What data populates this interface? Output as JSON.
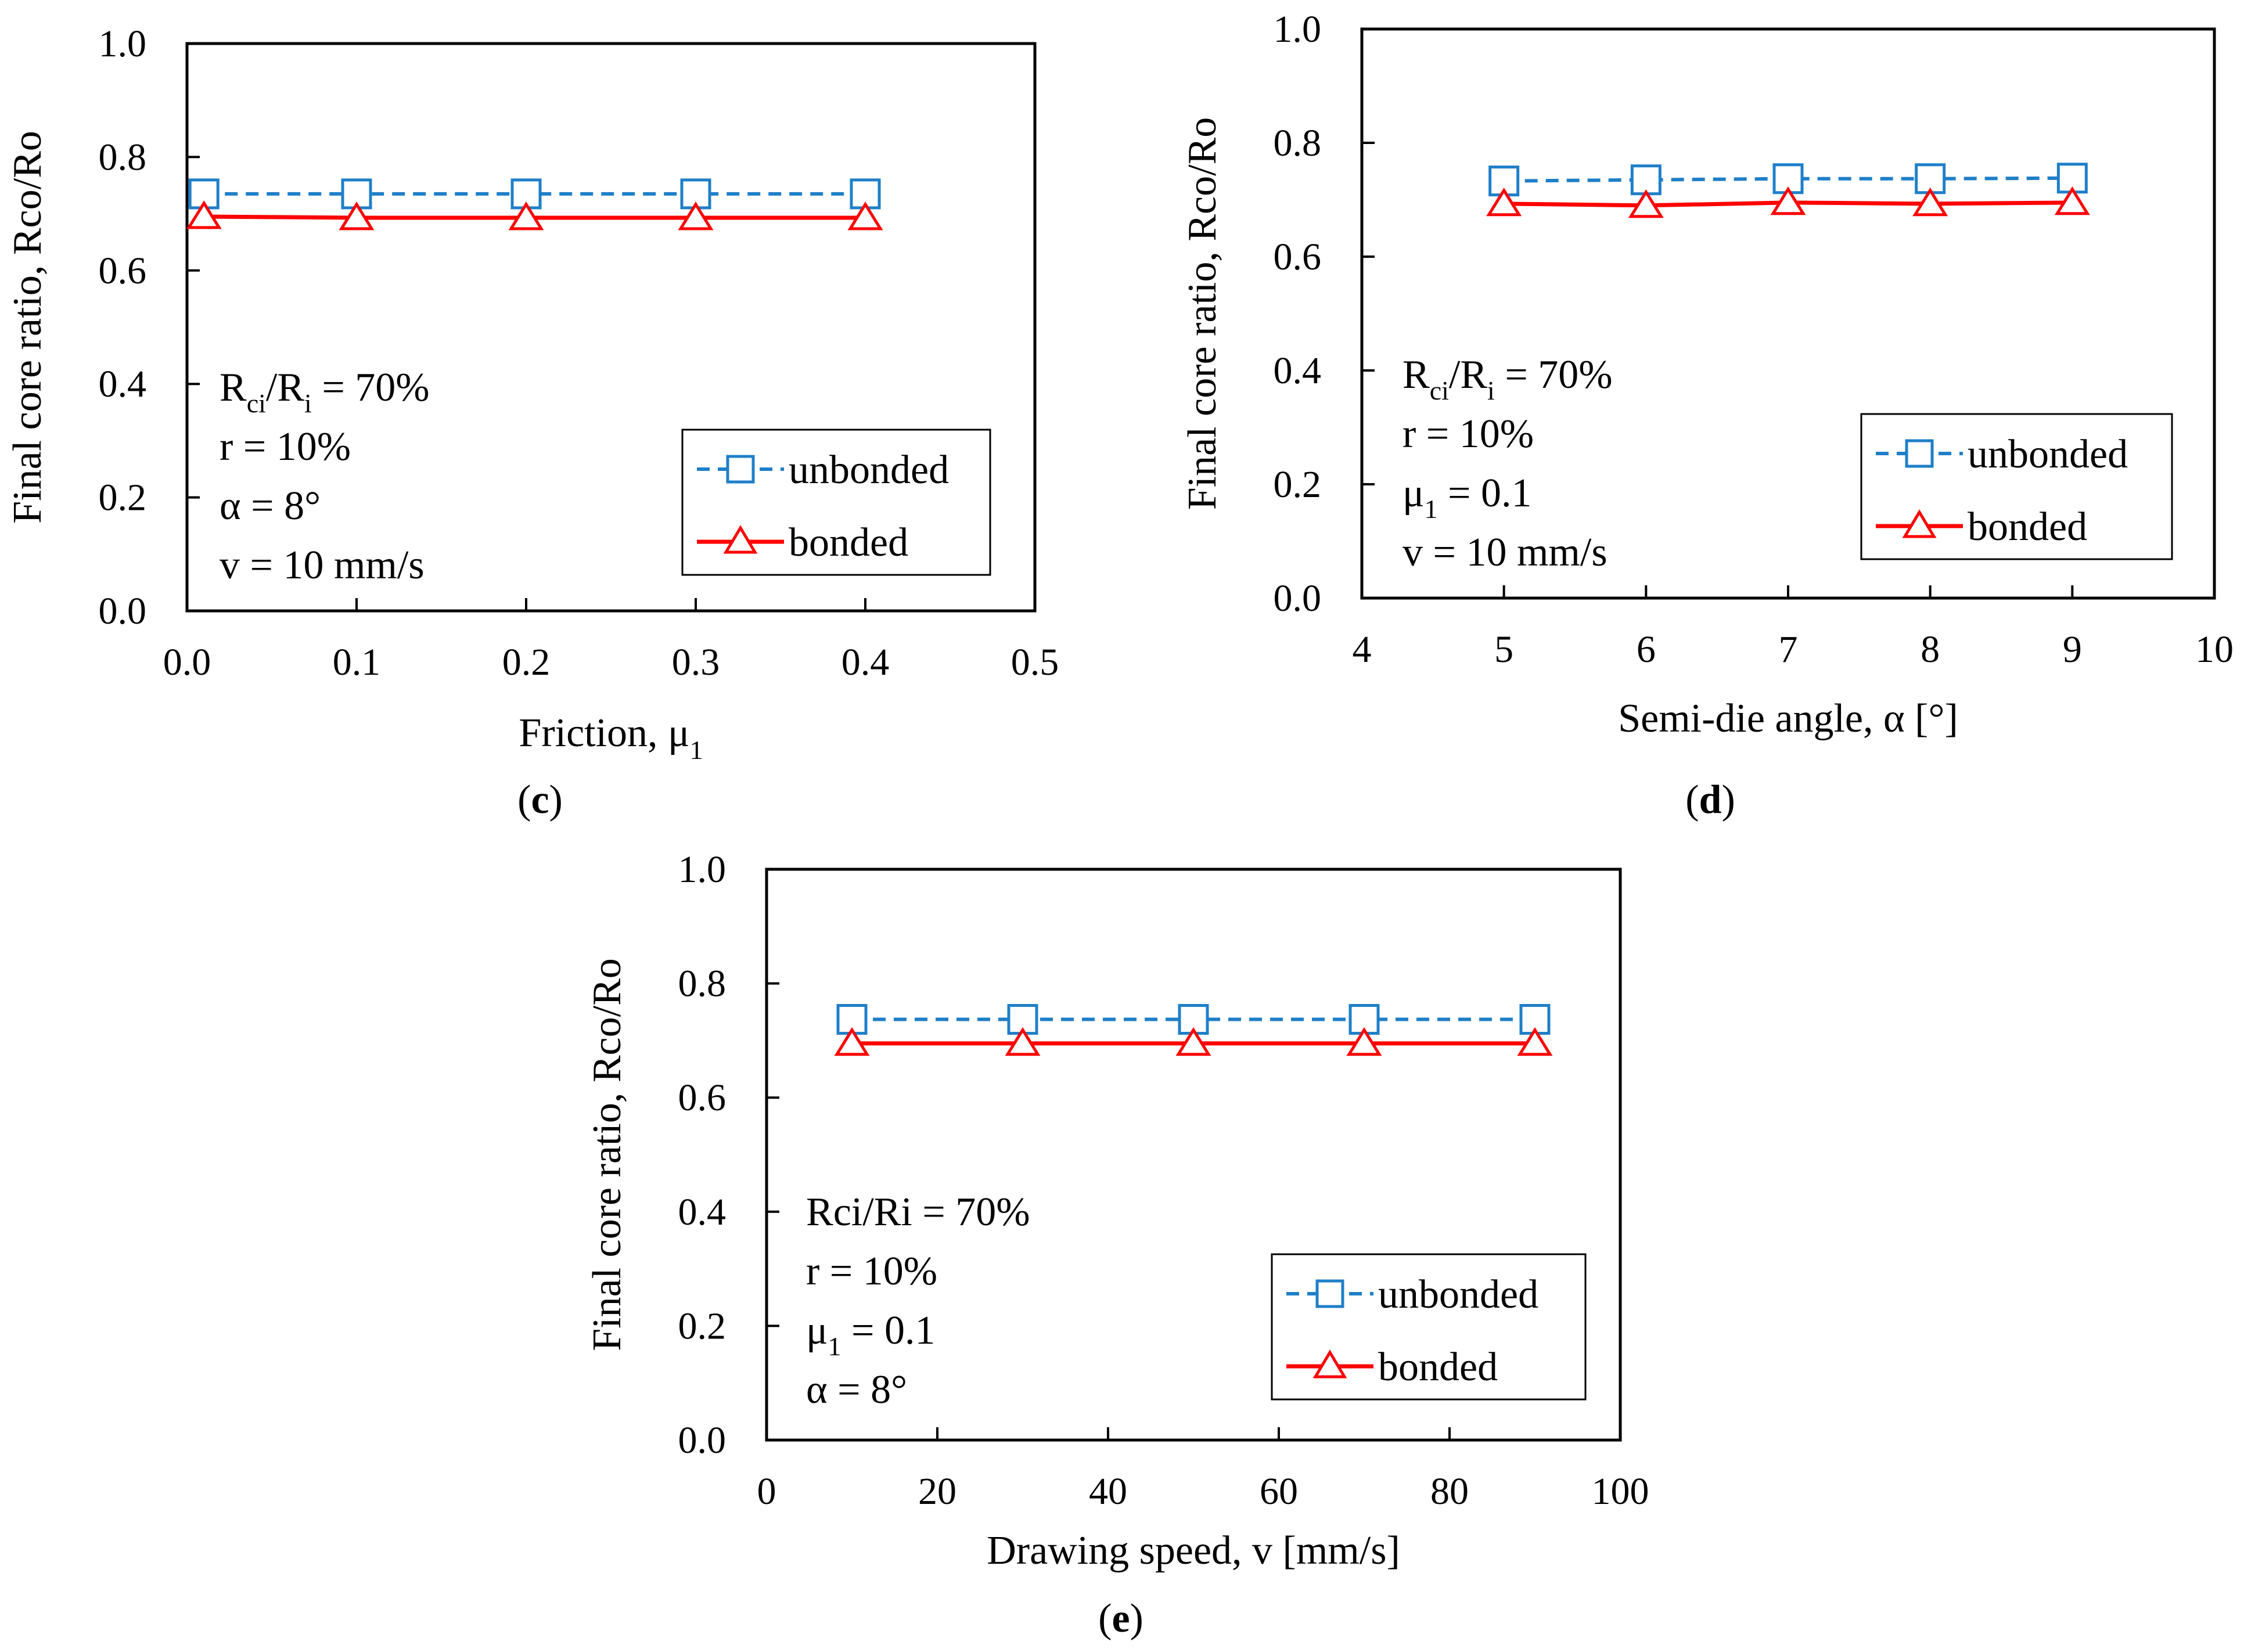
{
  "colors": {
    "unbonded": "#1F7FC8",
    "bonded": "#FF0000",
    "axis": "#000000"
  },
  "chart_data": [
    {
      "type": "line",
      "panel": "c",
      "xlabel": "Friction, μ",
      "xlabel_sub": "1",
      "ylabel": "Final core ratio, Rco/Ro",
      "xlim": [
        0.0,
        0.5
      ],
      "ylim": [
        0.0,
        1.0
      ],
      "xticks": [
        "0.0",
        "0.1",
        "0.2",
        "0.3",
        "0.4",
        "0.5"
      ],
      "yticks": [
        "0.0",
        "0.2",
        "0.4",
        "0.6",
        "0.8",
        "1.0"
      ],
      "x": [
        0.01,
        0.1,
        0.2,
        0.3,
        0.4
      ],
      "series": [
        {
          "name": "unbonded",
          "marker": "square",
          "style": "dashed",
          "values": [
            0.735,
            0.735,
            0.735,
            0.735,
            0.735
          ]
        },
        {
          "name": "bonded",
          "marker": "triangle",
          "style": "solid",
          "values": [
            0.695,
            0.693,
            0.693,
            0.693,
            0.693
          ]
        }
      ],
      "annotations": [
        {
          "parts": [
            {
              "t": "R"
            },
            {
              "t": "ci",
              "sub": true
            },
            {
              "t": "/R"
            },
            {
              "t": "i",
              "sub": true
            },
            {
              "t": " = 70%"
            }
          ]
        },
        {
          "parts": [
            {
              "t": "r = 10%"
            }
          ]
        },
        {
          "parts": [
            {
              "t": "α = 8°"
            }
          ]
        },
        {
          "parts": [
            {
              "t": "v = 10 mm/s"
            }
          ]
        }
      ],
      "legend": "lower-right",
      "grid": false
    },
    {
      "type": "line",
      "panel": "d",
      "xlabel": "Semi-die angle, α [°]",
      "xlabel_sub": "",
      "ylabel": "Final core ratio, Rco/Ro",
      "xlim": [
        4,
        10
      ],
      "ylim": [
        0.0,
        1.0
      ],
      "xticks": [
        "4",
        "5",
        "6",
        "7",
        "8",
        "9",
        "10"
      ],
      "yticks": [
        "0.0",
        "0.2",
        "0.4",
        "0.6",
        "0.8",
        "1.0"
      ],
      "x": [
        5,
        6,
        7,
        8,
        9
      ],
      "series": [
        {
          "name": "unbonded",
          "marker": "square",
          "style": "dashed",
          "values": [
            0.733,
            0.735,
            0.737,
            0.737,
            0.738
          ]
        },
        {
          "name": "bonded",
          "marker": "triangle",
          "style": "solid",
          "values": [
            0.693,
            0.69,
            0.695,
            0.693,
            0.695
          ]
        }
      ],
      "annotations": [
        {
          "parts": [
            {
              "t": "R"
            },
            {
              "t": "ci",
              "sub": true
            },
            {
              "t": "/R"
            },
            {
              "t": "i",
              "sub": true
            },
            {
              "t": " = 70%"
            }
          ]
        },
        {
          "parts": [
            {
              "t": "r = 10%"
            }
          ]
        },
        {
          "parts": [
            {
              "t": "μ"
            },
            {
              "t": "1",
              "sub": true
            },
            {
              "t": " = 0.1"
            }
          ]
        },
        {
          "parts": [
            {
              "t": "v = 10 mm/s"
            }
          ]
        }
      ],
      "legend": "lower-right",
      "grid": false
    },
    {
      "type": "line",
      "panel": "e",
      "xlabel": "Drawing speed, v [mm/s]",
      "xlabel_sub": "",
      "ylabel": "Final core ratio, Rco/Ro",
      "xlim": [
        0,
        100
      ],
      "ylim": [
        0.0,
        1.0
      ],
      "xticks": [
        "0",
        "20",
        "40",
        "60",
        "80",
        "100"
      ],
      "yticks": [
        "0.0",
        "0.2",
        "0.4",
        "0.6",
        "0.8",
        "1.0"
      ],
      "x": [
        10,
        30,
        50,
        70,
        90
      ],
      "series": [
        {
          "name": "unbonded",
          "marker": "square",
          "style": "dashed",
          "values": [
            0.737,
            0.737,
            0.737,
            0.737,
            0.737
          ]
        },
        {
          "name": "bonded",
          "marker": "triangle",
          "style": "solid",
          "values": [
            0.695,
            0.695,
            0.695,
            0.695,
            0.695
          ]
        }
      ],
      "annotations": [
        {
          "parts": [
            {
              "t": "Rci/Ri = 70%"
            }
          ]
        },
        {
          "parts": [
            {
              "t": "r = 10%"
            }
          ]
        },
        {
          "parts": [
            {
              "t": "μ"
            },
            {
              "t": "1",
              "sub": true
            },
            {
              "t": " = 0.1"
            }
          ]
        },
        {
          "parts": [
            {
              "t": "α = 8°"
            }
          ]
        }
      ],
      "legend": "lower-right",
      "grid": false
    }
  ]
}
